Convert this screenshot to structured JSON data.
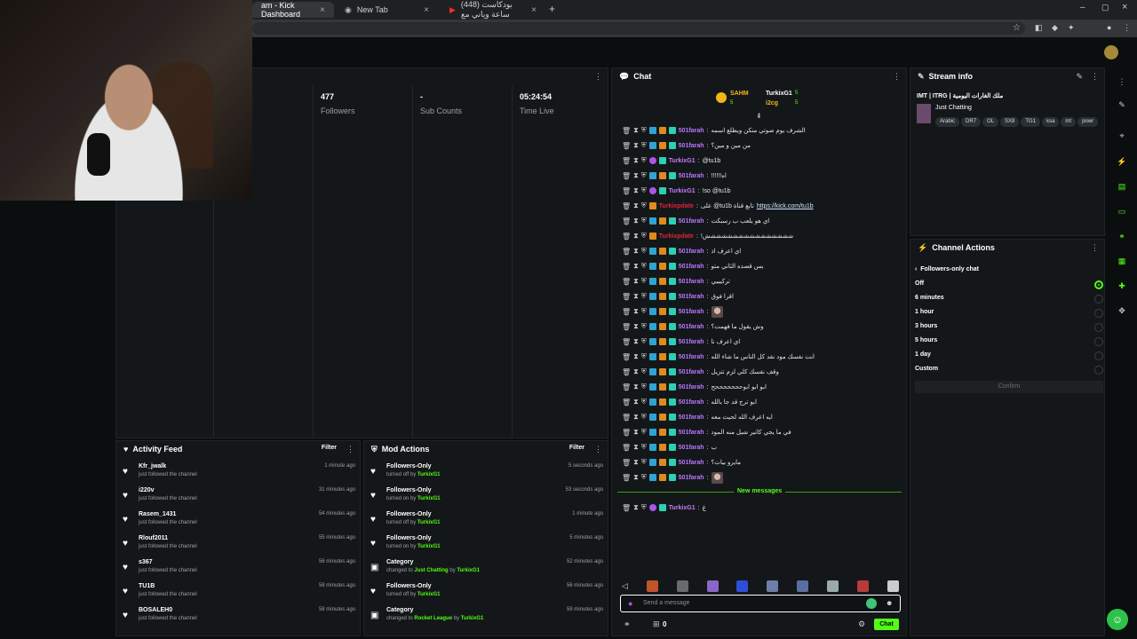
{
  "browser": {
    "tabs": [
      {
        "label": "am - Kick Dashboard",
        "active": true
      },
      {
        "label": "New Tab",
        "active": false
      },
      {
        "label": "(448) بودكاست ساعة وياني مع",
        "active": false
      }
    ]
  },
  "stats": {
    "followers_value": "477",
    "followers_label": "Followers",
    "subs_value": "-",
    "subs_label": "Sub Counts",
    "time_value": "05:24:54",
    "time_label": "Time Live"
  },
  "chat": {
    "title": "Chat",
    "top": {
      "user1": "SAHM",
      "user1_count": "5",
      "user2": "TurkixG1",
      "user2_count": "5",
      "user3": "i2cg",
      "user3_count": "5"
    },
    "messages": [
      {
        "user": "501farah",
        "cls": "u-g",
        "text": "الشرف يوم صوتي منكن ويطلع اسمه",
        "badge": "std"
      },
      {
        "user": "501farah",
        "cls": "u-g",
        "text": "من مين و مين؟",
        "badge": "std"
      },
      {
        "user": "TurkixG1",
        "cls": "u-t",
        "text": "@tu1b",
        "badge": "mod"
      },
      {
        "user": "501farah",
        "cls": "u-g",
        "text": "!!!!!!اه",
        "badge": "std"
      },
      {
        "user": "TurkixG1",
        "cls": "u-t",
        "text": "!so @tu1b",
        "badge": "mod"
      },
      {
        "user": "Turkixpdate",
        "cls": "u-r",
        "text": "على @tu1b تابع قناة",
        "link": "https://kick.com/tu1b",
        "badge": "bot"
      },
      {
        "user": "501farah",
        "cls": "u-g",
        "text": "اي هو يلعب ب رسبكت",
        "badge": "std"
      },
      {
        "user": "Turkixpdate",
        "cls": "u-r",
        "text": "!شششششششششششششششش",
        "badge": "bot"
      },
      {
        "user": "501farah",
        "cls": "u-g",
        "text": "اي اعرف اذ",
        "badge": "std"
      },
      {
        "user": "501farah",
        "cls": "u-g",
        "text": "بس قصده الثاني متو",
        "badge": "std"
      },
      {
        "user": "501farah",
        "cls": "u-g",
        "text": "تركيييي",
        "badge": "std"
      },
      {
        "user": "501farah",
        "cls": "u-g",
        "text": "اقرا فوق",
        "badge": "std"
      },
      {
        "user": "501farah",
        "cls": "u-g",
        "text": "",
        "emote": true,
        "badge": "std"
      },
      {
        "user": "501farah",
        "cls": "u-g",
        "text": "وش يقول ما فهمت؟",
        "badge": "std"
      },
      {
        "user": "501farah",
        "cls": "u-g",
        "text": "اي اعرف نا",
        "badge": "std"
      },
      {
        "user": "501farah",
        "cls": "u-g",
        "text": "انت نفسك مود نفد كل الناس ما شاء الله",
        "badge": "std"
      },
      {
        "user": "501farah",
        "cls": "u-g",
        "text": "وقف نفسك كلي لزم تتزيل",
        "badge": "std"
      },
      {
        "user": "501farah",
        "cls": "u-g",
        "text": "ابو ابو ابوحححححححح",
        "badge": "std"
      },
      {
        "user": "501farah",
        "cls": "u-g",
        "text": "ابو ترج قد جا بالله",
        "badge": "std"
      },
      {
        "user": "501farah",
        "cls": "u-g",
        "text": "ايه اعرف الله لحيث معه",
        "badge": "std"
      },
      {
        "user": "501farah",
        "cls": "u-g",
        "text": "في ما يجي كاتير شيل منه المود",
        "badge": "std"
      },
      {
        "user": "501farah",
        "cls": "u-g",
        "text": "ب",
        "badge": "std"
      },
      {
        "user": "501farah",
        "cls": "u-g",
        "text": "مايرو بيات؟",
        "badge": "std"
      },
      {
        "user": "501farah",
        "cls": "u-g",
        "text": "",
        "emote": true,
        "badge": "std"
      }
    ],
    "new_messages_label": "New messages",
    "after_new": {
      "user": "TurkixG1",
      "text": "غ",
      "badge": "mod"
    },
    "input_placeholder": "Send a message",
    "send_label": "Chat",
    "bottom_count": "0"
  },
  "stream_info": {
    "title": "Stream info",
    "stream_title": "IMT | ITRG | ملك الغارات اليومية",
    "category": "Just Chatting",
    "tags": [
      "Arabic",
      "DR7",
      "OL",
      "SX8",
      "TG1",
      "ksa",
      "mt",
      "powr"
    ]
  },
  "channel_actions": {
    "title": "Channel Actions",
    "subtitle": "Followers-only chat",
    "options": [
      "Off",
      "6 minutes",
      "1 hour",
      "3 hours",
      "5 hours",
      "1 day",
      "Custom"
    ],
    "selected": 0,
    "confirm_label": "Confirm"
  },
  "activity": {
    "title": "Activity Feed",
    "filter_label": "Filter",
    "items": [
      {
        "name": "Kfr_jwalk",
        "sub": "just followed the channel",
        "time": "1 minute ago"
      },
      {
        "name": "i220v",
        "sub": "just followed the channel",
        "time": "31 minutes ago"
      },
      {
        "name": "Rasem_1431",
        "sub": "just followed the channel",
        "time": "54 minutes ago"
      },
      {
        "name": "Rlouf2011",
        "sub": "just followed the channel",
        "time": "55 minutes ago"
      },
      {
        "name": "s367",
        "sub": "just followed the channel",
        "time": "56 minutes ago"
      },
      {
        "name": "TU1B",
        "sub": "just followed the channel",
        "time": "58 minutes ago"
      },
      {
        "name": "BOSALEH0",
        "sub": "just followed the channel",
        "time": "58 minutes ago"
      }
    ]
  },
  "mod_actions": {
    "title": "Mod Actions",
    "filter_label": "Filter",
    "items": [
      {
        "name": "Followers-Only",
        "pre": "turned off by",
        "by": "TurkixG1",
        "time": "5 seconds ago",
        "icon": "heart"
      },
      {
        "name": "Followers-Only",
        "pre": "turned on by",
        "by": "TurkixG1",
        "time": "53 seconds ago",
        "icon": "heart"
      },
      {
        "name": "Followers-Only",
        "pre": "turned off by",
        "by": "TurkixG1",
        "time": "1 minute ago",
        "icon": "heart"
      },
      {
        "name": "Followers-Only",
        "pre": "turned on by",
        "by": "TurkixG1",
        "time": "5 minutes ago",
        "icon": "heart"
      },
      {
        "name": "Category",
        "pre": "changed to",
        "mid": "Just Chatting",
        "by_pre": "by",
        "by": "TurkixG1",
        "time": "52 minutes ago",
        "icon": "box"
      },
      {
        "name": "Followers-Only",
        "pre": "turned off by",
        "by": "TurkixG1",
        "time": "56 minutes ago",
        "icon": "heart"
      },
      {
        "name": "Category",
        "pre": "changed to",
        "mid": "Rocket League",
        "by_pre": "by",
        "by": "TurkixG1",
        "time": "59 minutes ago",
        "icon": "box"
      }
    ]
  },
  "colors": {
    "accent": "#53fc18",
    "panel": "#141719",
    "bg": "#0b0e0f"
  }
}
